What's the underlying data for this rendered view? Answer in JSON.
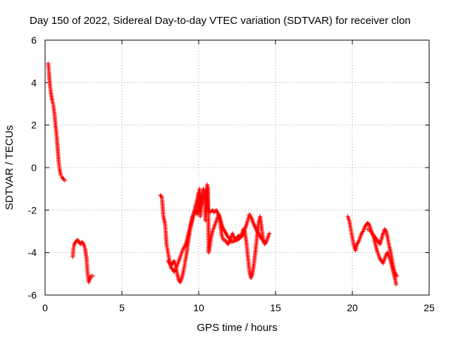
{
  "chart_data": {
    "type": "scatter",
    "title": "Day 150 of 2022, Sidereal Day-to-day VTEC variation (SDTVAR) for receiver clon",
    "xlabel": "GPS time / hours",
    "ylabel": "SDTVAR / TECUs",
    "xlim": [
      0,
      25
    ],
    "ylim": [
      -6,
      6
    ],
    "xticks": [
      "0",
      "5",
      "10",
      "15",
      "20",
      "25"
    ],
    "yticks": [
      "-6",
      "-4",
      "-2",
      "0",
      "2",
      "4",
      "6"
    ],
    "grid": true,
    "marker": "+",
    "color": "#ff0000",
    "series": [
      {
        "name": "SDTVAR",
        "segments": [
          [
            [
              0.2,
              4.9
            ],
            [
              0.25,
              4.5
            ],
            [
              0.3,
              4.0
            ],
            [
              0.38,
              3.5
            ],
            [
              0.45,
              3.2
            ],
            [
              0.52,
              3.0
            ],
            [
              0.6,
              2.6
            ],
            [
              0.68,
              2.0
            ],
            [
              0.75,
              1.5
            ],
            [
              0.82,
              0.9
            ],
            [
              0.88,
              0.3
            ],
            [
              0.95,
              -0.1
            ],
            [
              1.02,
              -0.35
            ],
            [
              1.1,
              -0.45
            ],
            [
              1.2,
              -0.55
            ],
            [
              1.28,
              -0.6
            ]
          ],
          [
            [
              1.8,
              -4.2
            ],
            [
              1.85,
              -3.8
            ],
            [
              1.9,
              -3.6
            ],
            [
              2.0,
              -3.5
            ],
            [
              2.1,
              -3.4
            ],
            [
              2.2,
              -3.5
            ],
            [
              2.3,
              -3.6
            ],
            [
              2.4,
              -3.5
            ],
            [
              2.5,
              -3.6
            ],
            [
              2.6,
              -3.8
            ],
            [
              2.7,
              -4.3
            ],
            [
              2.75,
              -4.8
            ],
            [
              2.8,
              -5.2
            ],
            [
              2.85,
              -5.4
            ],
            [
              2.9,
              -5.3
            ],
            [
              3.0,
              -5.1
            ],
            [
              3.1,
              -5.1
            ]
          ],
          [
            [
              7.5,
              -1.3
            ],
            [
              7.6,
              -1.4
            ],
            [
              7.65,
              -1.8
            ],
            [
              7.7,
              -2.3
            ],
            [
              7.8,
              -2.6
            ],
            [
              7.85,
              -3.0
            ],
            [
              7.9,
              -3.6
            ],
            [
              8.0,
              -4.0
            ],
            [
              8.1,
              -4.4
            ],
            [
              8.2,
              -4.6
            ],
            [
              8.3,
              -4.5
            ],
            [
              8.4,
              -4.4
            ],
            [
              8.5,
              -4.6
            ],
            [
              8.6,
              -5.0
            ],
            [
              8.7,
              -5.3
            ],
            [
              8.8,
              -5.4
            ],
            [
              8.9,
              -5.2
            ],
            [
              9.0,
              -4.9
            ],
            [
              9.1,
              -4.5
            ],
            [
              9.2,
              -4.1
            ],
            [
              9.3,
              -3.6
            ],
            [
              9.4,
              -3.1
            ],
            [
              9.5,
              -2.7
            ],
            [
              9.6,
              -2.4
            ],
            [
              9.7,
              -2.1
            ],
            [
              9.8,
              -2.0
            ],
            [
              9.9,
              -2.2
            ],
            [
              10.0,
              -1.6
            ],
            [
              10.05,
              -1.0
            ],
            [
              10.1,
              -2.3
            ],
            [
              10.2,
              -1.4
            ],
            [
              10.3,
              -1.0
            ],
            [
              10.4,
              -1.2
            ],
            [
              10.45,
              -2.5
            ],
            [
              10.55,
              -0.8
            ],
            [
              10.6,
              -1.0
            ],
            [
              10.65,
              -4.0
            ],
            [
              10.7,
              -3.8
            ],
            [
              10.8,
              -3.3
            ],
            [
              10.9,
              -3.0
            ],
            [
              11.0,
              -2.8
            ],
            [
              11.1,
              -2.6
            ],
            [
              11.2,
              -2.4
            ],
            [
              11.3,
              -2.2
            ],
            [
              11.4,
              -2.6
            ],
            [
              11.5,
              -3.2
            ],
            [
              11.6,
              -3.4
            ],
            [
              11.7,
              -3.4
            ],
            [
              11.8,
              -3.5
            ],
            [
              11.9,
              -3.6
            ],
            [
              12.0,
              -3.5
            ],
            [
              12.1,
              -3.3
            ],
            [
              12.2,
              -3.1
            ],
            [
              12.3,
              -3.3
            ],
            [
              12.4,
              -3.4
            ],
            [
              12.5,
              -3.3
            ],
            [
              12.6,
              -3.2
            ],
            [
              12.7,
              -3.3
            ],
            [
              12.8,
              -3.1
            ],
            [
              12.9,
              -2.9
            ],
            [
              13.0,
              -3.0
            ],
            [
              13.1,
              -3.5
            ],
            [
              13.2,
              -4.2
            ],
            [
              13.3,
              -4.9
            ],
            [
              13.4,
              -5.2
            ],
            [
              13.5,
              -5.0
            ],
            [
              13.6,
              -4.5
            ],
            [
              13.7,
              -3.9
            ],
            [
              13.8,
              -3.2
            ],
            [
              13.9,
              -2.6
            ],
            [
              14.0,
              -2.3
            ],
            [
              14.1,
              -2.9
            ],
            [
              14.2,
              -3.4
            ],
            [
              14.3,
              -3.6
            ],
            [
              14.4,
              -3.5
            ],
            [
              14.5,
              -3.3
            ],
            [
              14.6,
              -3.1
            ]
          ],
          [
            [
              8.0,
              -4.4
            ],
            [
              8.1,
              -4.5
            ],
            [
              8.2,
              -4.7
            ],
            [
              8.3,
              -4.8
            ],
            [
              8.4,
              -4.9
            ],
            [
              8.5,
              -4.8
            ],
            [
              8.6,
              -4.6
            ],
            [
              8.7,
              -4.4
            ],
            [
              8.8,
              -4.2
            ],
            [
              8.9,
              -4.0
            ],
            [
              9.0,
              -3.8
            ],
            [
              9.1,
              -3.7
            ],
            [
              9.2,
              -3.5
            ],
            [
              9.3,
              -3.2
            ],
            [
              9.4,
              -2.9
            ],
            [
              9.5,
              -2.6
            ],
            [
              9.6,
              -2.3
            ],
            [
              9.7,
              -2.1
            ],
            [
              10.0,
              -1.2
            ],
            [
              10.15,
              -1.8
            ],
            [
              10.3,
              -1.4
            ],
            [
              10.5,
              -1.1
            ],
            [
              10.6,
              -2.0
            ],
            [
              10.75,
              -2.1
            ],
            [
              10.9,
              -2.0
            ],
            [
              11.0,
              -2.1
            ],
            [
              11.15,
              -2.0
            ],
            [
              11.35,
              -2.3
            ],
            [
              11.55,
              -2.8
            ],
            [
              11.85,
              -3.2
            ],
            [
              12.15,
              -3.5
            ],
            [
              12.55,
              -3.4
            ],
            [
              12.85,
              -3.2
            ],
            [
              13.0,
              -2.9
            ],
            [
              13.15,
              -2.6
            ],
            [
              13.3,
              -2.2
            ],
            [
              13.45,
              -2.4
            ],
            [
              13.6,
              -2.7
            ],
            [
              13.8,
              -3.0
            ],
            [
              14.05,
              -3.3
            ],
            [
              14.25,
              -3.5
            ]
          ],
          [
            [
              19.7,
              -2.3
            ],
            [
              19.8,
              -2.5
            ],
            [
              19.9,
              -2.9
            ],
            [
              20.0,
              -3.3
            ],
            [
              20.1,
              -3.7
            ],
            [
              20.2,
              -3.9
            ],
            [
              20.3,
              -3.6
            ],
            [
              20.4,
              -3.5
            ],
            [
              20.5,
              -3.3
            ],
            [
              20.6,
              -3.1
            ],
            [
              20.7,
              -3.0
            ],
            [
              20.8,
              -2.8
            ],
            [
              20.9,
              -2.7
            ],
            [
              21.0,
              -2.6
            ],
            [
              21.1,
              -2.7
            ],
            [
              21.2,
              -2.9
            ],
            [
              21.3,
              -3.1
            ],
            [
              21.4,
              -3.3
            ],
            [
              21.5,
              -3.6
            ],
            [
              21.6,
              -3.9
            ],
            [
              21.7,
              -4.1
            ],
            [
              21.8,
              -4.3
            ],
            [
              21.9,
              -4.4
            ],
            [
              22.0,
              -4.5
            ],
            [
              22.1,
              -4.3
            ],
            [
              22.2,
              -4.1
            ],
            [
              22.3,
              -4.0
            ],
            [
              22.4,
              -4.2
            ],
            [
              22.5,
              -4.4
            ],
            [
              22.6,
              -4.7
            ],
            [
              22.7,
              -5.0
            ],
            [
              22.8,
              -5.3
            ],
            [
              22.85,
              -5.5
            ]
          ],
          [
            [
              21.0,
              -2.9
            ],
            [
              21.2,
              -3.0
            ],
            [
              21.4,
              -3.2
            ],
            [
              21.6,
              -3.4
            ],
            [
              21.8,
              -3.6
            ],
            [
              22.0,
              -3.1
            ],
            [
              22.1,
              -2.9
            ],
            [
              22.2,
              -3.0
            ],
            [
              22.3,
              -3.3
            ],
            [
              22.4,
              -3.7
            ],
            [
              22.5,
              -4.0
            ],
            [
              22.6,
              -4.4
            ],
            [
              22.7,
              -4.8
            ],
            [
              22.8,
              -5.0
            ],
            [
              22.9,
              -5.1
            ]
          ]
        ]
      }
    ]
  }
}
